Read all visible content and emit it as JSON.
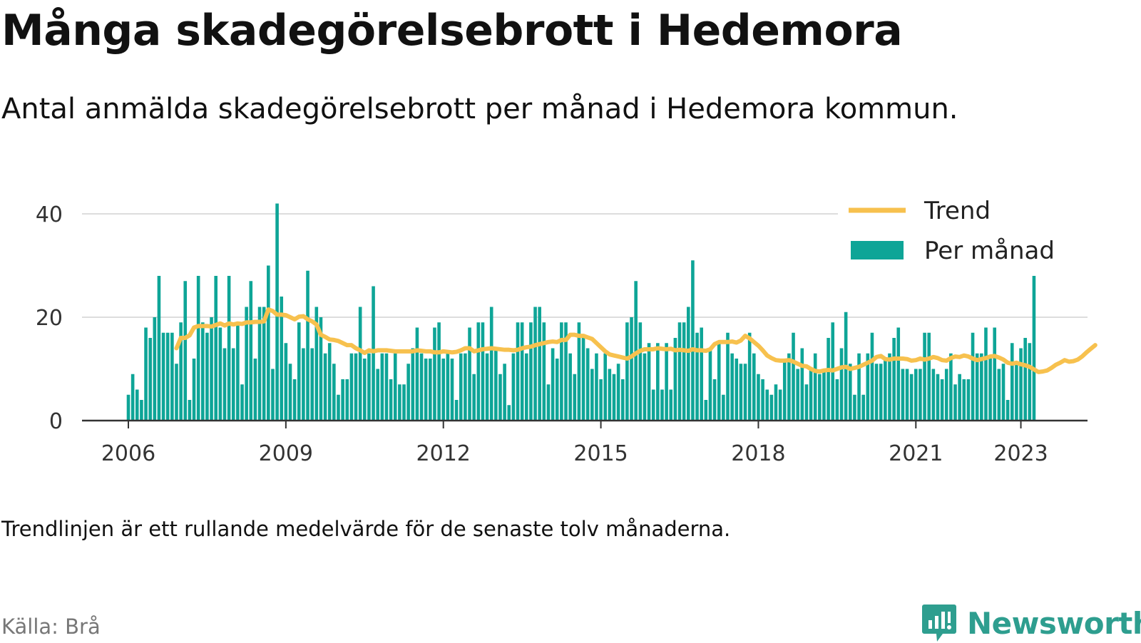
{
  "title": "Många skadegörelsebrott i Hedemora",
  "subtitle": "Antal anmälda skadegörelsebrott per månad i Hedemora kommun.",
  "note": "Trendlinjen är ett rullande medelvärde för de senaste tolv månaderna.",
  "source": "Källa: Brå",
  "brand": "Newsworthy",
  "colors": {
    "bars": "#0ea597",
    "trend": "#f7c14e",
    "grid": "#dddddd",
    "brand": "#2e9e8f"
  },
  "chart_data": {
    "type": "bar",
    "start": "2006-01",
    "x_ticks": [
      "2006",
      "2009",
      "2012",
      "2015",
      "2018",
      "2021",
      "2023"
    ],
    "y_ticks": [
      "0",
      "20",
      "40"
    ],
    "ylim": [
      0,
      42
    ],
    "grid": true,
    "legend_position": "top-right",
    "series": [
      {
        "name": "Per månad",
        "kind": "bar",
        "values": [
          5,
          9,
          6,
          4,
          18,
          16,
          20,
          28,
          17,
          17,
          17,
          11,
          19,
          27,
          4,
          12,
          28,
          19,
          17,
          20,
          28,
          18,
          14,
          28,
          14,
          19,
          7,
          22,
          27,
          12,
          22,
          22,
          30,
          10,
          42,
          24,
          15,
          11,
          8,
          19,
          14,
          29,
          14,
          22,
          20,
          13,
          15,
          11,
          5,
          8,
          8,
          13,
          13,
          22,
          12,
          13,
          26,
          10,
          13,
          13,
          8,
          13,
          7,
          7,
          11,
          14,
          18,
          13,
          12,
          12,
          18,
          19,
          12,
          13,
          12,
          4,
          13,
          13,
          18,
          9,
          19,
          19,
          13,
          22,
          14,
          9,
          11,
          3,
          13,
          19,
          19,
          13,
          19,
          22,
          22,
          19,
          7,
          14,
          12,
          19,
          19,
          13,
          9,
          19,
          16,
          14,
          10,
          13,
          8,
          13,
          10,
          9,
          11,
          8,
          19,
          20,
          27,
          19,
          13,
          15,
          6,
          15,
          6,
          15,
          6,
          16,
          19,
          19,
          22,
          31,
          17,
          18,
          4,
          14,
          8,
          15,
          5,
          17,
          13,
          12,
          11,
          11,
          17,
          13,
          9,
          8,
          6,
          5,
          7,
          6,
          12,
          13,
          17,
          10,
          14,
          7,
          10,
          13,
          9,
          10,
          16,
          19,
          8,
          14,
          21,
          11,
          5,
          13,
          5,
          13,
          17,
          11,
          11,
          12,
          13,
          16,
          18,
          10,
          10,
          9,
          10,
          10,
          17,
          17,
          10,
          9,
          8,
          10,
          13,
          7,
          9,
          8,
          8,
          17,
          13,
          13,
          18,
          12,
          18,
          10,
          11,
          4,
          15,
          11,
          14,
          16,
          15,
          28
        ]
      },
      {
        "name": "Trend",
        "kind": "line",
        "values": [
          null,
          null,
          null,
          null,
          null,
          null,
          null,
          null,
          null,
          null,
          null,
          14,
          16,
          16,
          16.5,
          18,
          18.3,
          18.3,
          18.3,
          18.2,
          18.5,
          18.8,
          18.4,
          18.8,
          18.6,
          18.8,
          18.7,
          19,
          19,
          19.1,
          19.1,
          19.2,
          21.5,
          21.2,
          20.5,
          20.5,
          20.4,
          20,
          19.6,
          20.1,
          20.2,
          19.6,
          19.2,
          18.6,
          16.6,
          16.2,
          15.7,
          15.6,
          15.4,
          15,
          14.6,
          14.6,
          14,
          13.6,
          13.1,
          13.6,
          13.4,
          13.6,
          13.6,
          13.6,
          13.5,
          13.4,
          13.4,
          13.4,
          13.4,
          13.4,
          13.6,
          13.5,
          13.4,
          13.4,
          13.2,
          13.2,
          13.4,
          13.3,
          13.2,
          13.3,
          13.6,
          14,
          14,
          13.4,
          13.6,
          13.8,
          13.9,
          14,
          13.9,
          13.8,
          13.7,
          13.7,
          13.6,
          13.7,
          14,
          14.2,
          14.3,
          14.6,
          14.8,
          15,
          15.2,
          15.3,
          15.2,
          15.6,
          15.6,
          16.6,
          16.6,
          16.4,
          16.4,
          16.1,
          15.8,
          15,
          14.2,
          13.4,
          12.8,
          12.6,
          12.4,
          12.2,
          12,
          12.4,
          13,
          13.5,
          13.8,
          13.8,
          13.8,
          14,
          13.9,
          13.8,
          13.9,
          13.6,
          13.7,
          13.6,
          13.5,
          13.8,
          13.6,
          13.6,
          13.5,
          13.8,
          14.8,
          15.2,
          15.2,
          15.2,
          15.3,
          15.1,
          15.5,
          16.4,
          15.9,
          15.2,
          14.5,
          13.6,
          12.6,
          12.1,
          11.7,
          11.6,
          11.6,
          11.7,
          11.4,
          11,
          10.6,
          10.5,
          10,
          9.6,
          9.5,
          9.7,
          9.8,
          9.7,
          10,
          10.3,
          10.4,
          10,
          10.2,
          10.4,
          10.8,
          11.2,
          11.6,
          12.3,
          12.5,
          11.9,
          11.8,
          12,
          12,
          12,
          11.9,
          11.6,
          11.7,
          12,
          11.8,
          12,
          12.3,
          12.1,
          11.7,
          11.6,
          12.1,
          12.4,
          12.3,
          12.6,
          12.4,
          12,
          11.7,
          11.9,
          12.1,
          12.4,
          12.5,
          12.2,
          11.8,
          11.2,
          11,
          11.2,
          10.9,
          10.7,
          10.4,
          9.9,
          9.4,
          9.5,
          9.7,
          10.2,
          10.8,
          11.2,
          11.7,
          11.4,
          11.5,
          11.8,
          12.4,
          13.2,
          13.9,
          14.6
        ]
      }
    ]
  }
}
